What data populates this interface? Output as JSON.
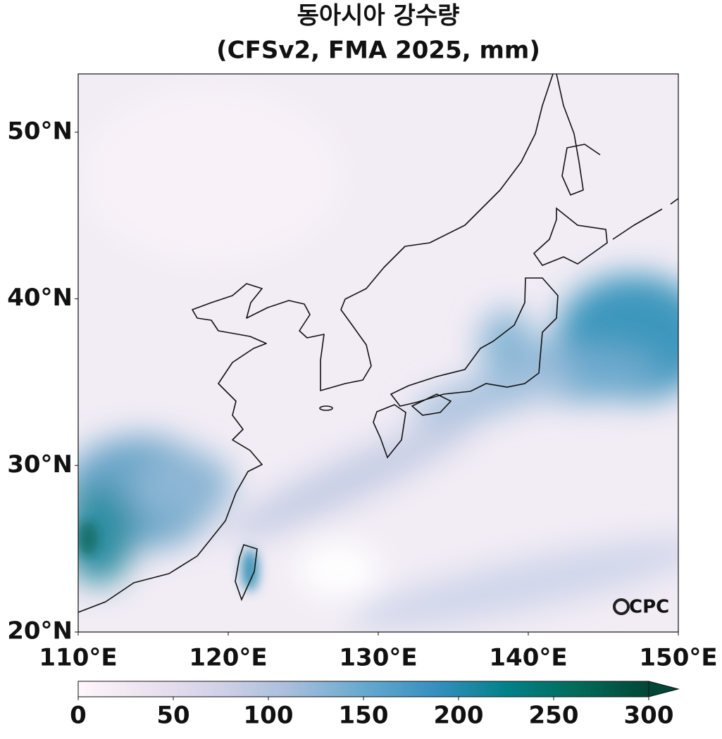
{
  "header": {
    "title": "동아시아 강수량",
    "subtitle": "(CFSv2, FMA 2025, mm)"
  },
  "map": {
    "xlim": [
      110,
      150
    ],
    "ylim": [
      20,
      53.5
    ],
    "xticks": [
      {
        "value": 110,
        "label": "110°E"
      },
      {
        "value": 120,
        "label": "120°E"
      },
      {
        "value": 130,
        "label": "130°E"
      },
      {
        "value": 140,
        "label": "140°E"
      },
      {
        "value": 150,
        "label": "150°E"
      }
    ],
    "yticks": [
      {
        "value": 20,
        "label": "20°N"
      },
      {
        "value": 30,
        "label": "30°N"
      },
      {
        "value": 40,
        "label": "40°N"
      },
      {
        "value": 50,
        "label": "50°N"
      }
    ]
  },
  "colorbar": {
    "lim": [
      0,
      300
    ],
    "ticks": [
      0,
      50,
      100,
      150,
      200,
      250,
      300
    ]
  },
  "logo": "CPC"
}
